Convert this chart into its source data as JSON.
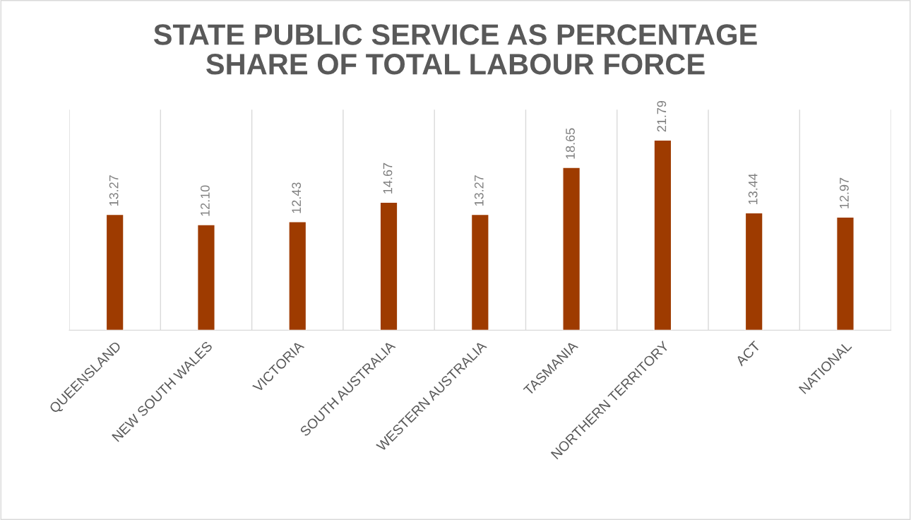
{
  "chart_data": {
    "type": "bar",
    "title": "STATE PUBLIC SERVICE AS PERCENTAGE\nSHARE OF TOTAL LABOUR FORCE",
    "categories": [
      "QUEENSLAND",
      "NEW SOUTH WALES",
      "VICTORIA",
      "SOUTH AUSTRALIA",
      "WESTERN AUSTRALIA",
      "TASMANIA",
      "NORTHERN TERRITORY",
      "ACT",
      "NATIONAL"
    ],
    "values": [
      13.27,
      12.1,
      12.43,
      14.67,
      13.27,
      18.65,
      21.79,
      13.44,
      12.97
    ],
    "value_labels": [
      "13.27",
      "12.10",
      "12.43",
      "14.67",
      "13.27",
      "18.65",
      "21.79",
      "13.44",
      "12.97"
    ],
    "color": "#9e3b00",
    "grid": "x",
    "legend": false
  }
}
